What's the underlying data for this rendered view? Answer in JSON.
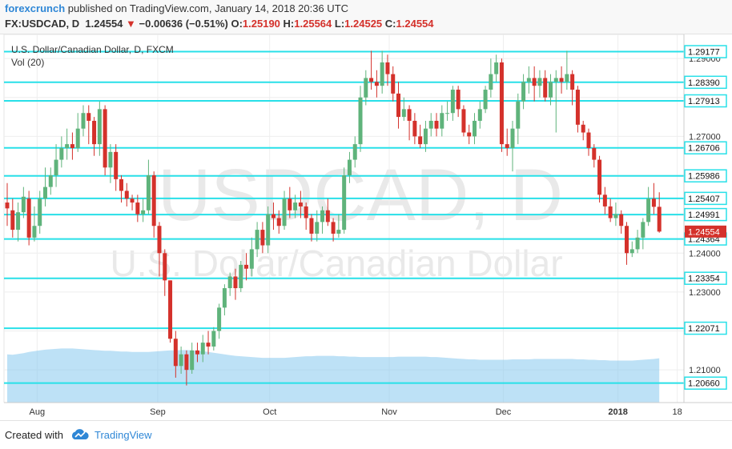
{
  "header": {
    "author": "forexcrunch",
    "published": "published on TradingView.com, January 14, 2018 20:36 UTC",
    "symbol": "FX:USDCAD, D",
    "last": "1.24554",
    "change": "−0.00636 (−0.51%)",
    "o_label": "O:",
    "o_value": "1.25190",
    "h_label": "H:",
    "h_value": "1.25564",
    "l_label": "L:",
    "l_value": "1.24525",
    "c_label": "C:",
    "c_value": "1.24554"
  },
  "footer": {
    "created": "Created with",
    "brand": "TradingView"
  },
  "colors": {
    "up": "#5fb37b",
    "down": "#d4312b",
    "level_line": "#28e0e8",
    "volume_area": "#87c8ef"
  },
  "chart_data": {
    "type": "candlestick",
    "title": "U.S. Dollar/Canadian Dollar, D, FXCM",
    "indicator": "Vol (20)",
    "watermark_symbol": "USDCAD, D",
    "watermark_name": "U.S. Dollar/Canadian Dollar",
    "ylim": [
      1.2016,
      1.2962
    ],
    "y_ticks": [
      1.21,
      1.22,
      1.23,
      1.24,
      1.25,
      1.26,
      1.27,
      1.28,
      1.29
    ],
    "y_tick_labels": [
      "1.21000",
      "1.22000",
      "1.23000",
      "1.24000",
      "1.25000",
      "1.26000",
      "1.27000",
      "1.28000",
      "1.29000"
    ],
    "x_labels": [
      {
        "label": "Aug",
        "index": 5.5
      },
      {
        "label": "Sep",
        "index": 27.7
      },
      {
        "label": "Oct",
        "index": 48.3
      },
      {
        "label": "Nov",
        "index": 70.3
      },
      {
        "label": "Dec",
        "index": 91.3
      },
      {
        "label": "2018",
        "index": 112.4
      },
      {
        "label": "18",
        "index": 123.3
      }
    ],
    "levels": [
      1.29177,
      1.2839,
      1.27913,
      1.26706,
      1.25986,
      1.25407,
      1.24991,
      1.24364,
      1.23354,
      1.22071,
      1.2066
    ],
    "level_labels": [
      "1.29177",
      "1.28390",
      "1.27913",
      "1.26706",
      "1.25986",
      "1.25407",
      "1.24991",
      "1.24364",
      "1.23354",
      "1.22071",
      "1.20660"
    ],
    "last_price": 1.24554,
    "last_price_label": "1.24554",
    "candles": [
      [
        1.253,
        1.2515,
        1.258,
        1.247
      ],
      [
        1.251,
        1.246,
        1.254,
        1.244
      ],
      [
        1.246,
        1.2505,
        1.253,
        1.243
      ],
      [
        1.2505,
        1.2545,
        1.257,
        1.249
      ],
      [
        1.254,
        1.244,
        1.256,
        1.242
      ],
      [
        1.244,
        1.247,
        1.252,
        1.243
      ],
      [
        1.247,
        1.254,
        1.256,
        1.245
      ],
      [
        1.254,
        1.257,
        1.262,
        1.252
      ],
      [
        1.257,
        1.26,
        1.262,
        1.255
      ],
      [
        1.26,
        1.264,
        1.268,
        1.257
      ],
      [
        1.264,
        1.267,
        1.27,
        1.262
      ],
      [
        1.267,
        1.268,
        1.272,
        1.264
      ],
      [
        1.268,
        1.267,
        1.271,
        1.264
      ],
      [
        1.267,
        1.272,
        1.276,
        1.266
      ],
      [
        1.272,
        1.276,
        1.278,
        1.27
      ],
      [
        1.276,
        1.274,
        1.278,
        1.268
      ],
      [
        1.274,
        1.268,
        1.275,
        1.265
      ],
      [
        1.268,
        1.277,
        1.279,
        1.265
      ],
      [
        1.277,
        1.262,
        1.278,
        1.26
      ],
      [
        1.262,
        1.266,
        1.268,
        1.258
      ],
      [
        1.266,
        1.259,
        1.268,
        1.256
      ],
      [
        1.259,
        1.256,
        1.26,
        1.253
      ],
      [
        1.256,
        1.254,
        1.258,
        1.252
      ],
      [
        1.254,
        1.253,
        1.255,
        1.251
      ],
      [
        1.253,
        1.25,
        1.255,
        1.248
      ],
      [
        1.25,
        1.251,
        1.254,
        1.248
      ],
      [
        1.251,
        1.26,
        1.264,
        1.25
      ],
      [
        1.26,
        1.247,
        1.261,
        1.244
      ],
      [
        1.247,
        1.24,
        1.248,
        1.234
      ],
      [
        1.24,
        1.233,
        1.241,
        1.229
      ],
      [
        1.233,
        1.218,
        1.233,
        1.217
      ],
      [
        1.218,
        1.211,
        1.22,
        1.208
      ],
      [
        1.211,
        1.214,
        1.216,
        1.209
      ],
      [
        1.214,
        1.21,
        1.215,
        1.206
      ],
      [
        1.21,
        1.215,
        1.217,
        1.209
      ],
      [
        1.215,
        1.214,
        1.217,
        1.212
      ],
      [
        1.214,
        1.217,
        1.219,
        1.212
      ],
      [
        1.217,
        1.216,
        1.22,
        1.214
      ],
      [
        1.216,
        1.22,
        1.221,
        1.215
      ],
      [
        1.22,
        1.226,
        1.227,
        1.218
      ],
      [
        1.226,
        1.231,
        1.232,
        1.224
      ],
      [
        1.231,
        1.234,
        1.235,
        1.229
      ],
      [
        1.234,
        1.231,
        1.236,
        1.228
      ],
      [
        1.231,
        1.237,
        1.238,
        1.23
      ],
      [
        1.237,
        1.236,
        1.24,
        1.233
      ],
      [
        1.236,
        1.241,
        1.244,
        1.234
      ],
      [
        1.241,
        1.246,
        1.248,
        1.239
      ],
      [
        1.246,
        1.242,
        1.248,
        1.24
      ],
      [
        1.242,
        1.25,
        1.252,
        1.24
      ],
      [
        1.25,
        1.249,
        1.253,
        1.246
      ],
      [
        1.249,
        1.247,
        1.251,
        1.245
      ],
      [
        1.247,
        1.254,
        1.256,
        1.246
      ],
      [
        1.254,
        1.251,
        1.257,
        1.249
      ],
      [
        1.251,
        1.253,
        1.255,
        1.249
      ],
      [
        1.253,
        1.252,
        1.256,
        1.249
      ],
      [
        1.252,
        1.249,
        1.253,
        1.246
      ],
      [
        1.249,
        1.245,
        1.25,
        1.243
      ],
      [
        1.245,
        1.248,
        1.251,
        1.243
      ],
      [
        1.248,
        1.251,
        1.252,
        1.245
      ],
      [
        1.251,
        1.248,
        1.254,
        1.247
      ],
      [
        1.248,
        1.245,
        1.249,
        1.243
      ],
      [
        1.245,
        1.246,
        1.25,
        1.244
      ],
      [
        1.246,
        1.26,
        1.262,
        1.245
      ],
      [
        1.26,
        1.264,
        1.266,
        1.258
      ],
      [
        1.264,
        1.268,
        1.27,
        1.262
      ],
      [
        1.268,
        1.28,
        1.283,
        1.266
      ],
      [
        1.28,
        1.285,
        1.287,
        1.278
      ],
      [
        1.285,
        1.284,
        1.292,
        1.282
      ],
      [
        1.284,
        1.283,
        1.287,
        1.28
      ],
      [
        1.283,
        1.289,
        1.292,
        1.281
      ],
      [
        1.289,
        1.286,
        1.291,
        1.283
      ],
      [
        1.286,
        1.281,
        1.288,
        1.279
      ],
      [
        1.281,
        1.275,
        1.284,
        1.272
      ],
      [
        1.275,
        1.277,
        1.28,
        1.274
      ],
      [
        1.277,
        1.274,
        1.278,
        1.269
      ],
      [
        1.274,
        1.27,
        1.276,
        1.268
      ],
      [
        1.27,
        1.268,
        1.273,
        1.267
      ],
      [
        1.268,
        1.272,
        1.274,
        1.266
      ],
      [
        1.272,
        1.274,
        1.276,
        1.27
      ],
      [
        1.274,
        1.272,
        1.276,
        1.27
      ],
      [
        1.272,
        1.276,
        1.278,
        1.27
      ],
      [
        1.276,
        1.276,
        1.279,
        1.274
      ],
      [
        1.276,
        1.282,
        1.283,
        1.274
      ],
      [
        1.282,
        1.277,
        1.283,
        1.275
      ],
      [
        1.277,
        1.271,
        1.278,
        1.27
      ],
      [
        1.271,
        1.27,
        1.273,
        1.268
      ],
      [
        1.27,
        1.274,
        1.276,
        1.268
      ],
      [
        1.274,
        1.277,
        1.279,
        1.272
      ],
      [
        1.277,
        1.282,
        1.283,
        1.276
      ],
      [
        1.282,
        1.286,
        1.29,
        1.28
      ],
      [
        1.286,
        1.289,
        1.291,
        1.284
      ],
      [
        1.289,
        1.268,
        1.29,
        1.266
      ],
      [
        1.268,
        1.267,
        1.272,
        1.265
      ],
      [
        1.267,
        1.272,
        1.274,
        1.261
      ],
      [
        1.272,
        1.279,
        1.281,
        1.268
      ],
      [
        1.279,
        1.284,
        1.286,
        1.277
      ],
      [
        1.284,
        1.285,
        1.288,
        1.281
      ],
      [
        1.285,
        1.283,
        1.288,
        1.279
      ],
      [
        1.283,
        1.285,
        1.287,
        1.28
      ],
      [
        1.285,
        1.28,
        1.287,
        1.279
      ],
      [
        1.28,
        1.284,
        1.286,
        1.278
      ],
      [
        1.284,
        1.285,
        1.287,
        1.271
      ],
      [
        1.285,
        1.284,
        1.288,
        1.281
      ],
      [
        1.284,
        1.286,
        1.292,
        1.282
      ],
      [
        1.286,
        1.282,
        1.287,
        1.278
      ],
      [
        1.282,
        1.273,
        1.283,
        1.271
      ],
      [
        1.273,
        1.271,
        1.274,
        1.269
      ],
      [
        1.271,
        1.267,
        1.272,
        1.265
      ],
      [
        1.267,
        1.264,
        1.268,
        1.262
      ],
      [
        1.264,
        1.255,
        1.265,
        1.253
      ],
      [
        1.255,
        1.252,
        1.257,
        1.25
      ],
      [
        1.252,
        1.249,
        1.254,
        1.248
      ],
      [
        1.249,
        1.25,
        1.253,
        1.247
      ],
      [
        1.25,
        1.247,
        1.251,
        1.245
      ],
      [
        1.247,
        1.24,
        1.248,
        1.237
      ],
      [
        1.24,
        1.241,
        1.243,
        1.239
      ],
      [
        1.241,
        1.244,
        1.246,
        1.24
      ],
      [
        1.244,
        1.248,
        1.249,
        1.241
      ],
      [
        1.248,
        1.254,
        1.257,
        1.247
      ],
      [
        1.254,
        1.2519,
        1.258,
        1.25
      ],
      [
        1.2519,
        1.24554,
        1.25564,
        1.24525
      ]
    ],
    "volume_sma": [
      1.214,
      1.2139,
      1.2141,
      1.2143,
      1.2146,
      1.2148,
      1.215,
      1.2152,
      1.2153,
      1.2154,
      1.2155,
      1.2155,
      1.2155,
      1.2154,
      1.2153,
      1.2152,
      1.2151,
      1.215,
      1.2149,
      1.2149,
      1.2148,
      1.2147,
      1.2147,
      1.2146,
      1.2146,
      1.2146,
      1.2146,
      1.2147,
      1.2148,
      1.2149,
      1.215,
      1.215,
      1.2151,
      1.2151,
      1.215,
      1.2149,
      1.2148,
      1.2146,
      1.2144,
      1.2142,
      1.214,
      1.2138,
      1.2136,
      1.2135,
      1.2134,
      1.2133,
      1.2132,
      1.2131,
      1.2131,
      1.2131,
      1.2131,
      1.2131,
      1.2132,
      1.2133,
      1.2134,
      1.2135,
      1.2135,
      1.2136,
      1.2136,
      1.2136,
      1.2136,
      1.2135,
      1.2135,
      1.2134,
      1.2134,
      1.2133,
      1.2133,
      1.2133,
      1.2133,
      1.2133,
      1.2133,
      1.2133,
      1.2134,
      1.2134,
      1.2134,
      1.2134,
      1.2134,
      1.2134,
      1.2133,
      1.2133,
      1.2132,
      1.2131,
      1.213,
      1.2129,
      1.2128,
      1.2127,
      1.2127,
      1.2126,
      1.2126,
      1.2126,
      1.2126,
      1.2126,
      1.2126,
      1.2127,
      1.2127,
      1.2127,
      1.2127,
      1.2128,
      1.2128,
      1.2128,
      1.2128,
      1.2128,
      1.2128,
      1.2128,
      1.2128,
      1.2127,
      1.2127,
      1.2126,
      1.2126,
      1.2125,
      1.2125,
      1.2124,
      1.2124,
      1.2124,
      1.2124,
      1.2124,
      1.2125,
      1.2126,
      1.2127,
      1.2128,
      1.213
    ]
  }
}
